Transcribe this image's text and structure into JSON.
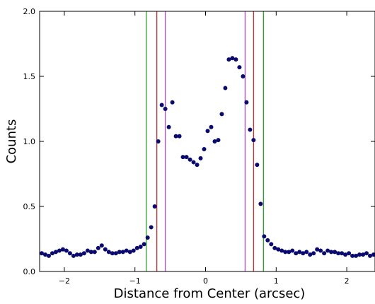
{
  "chart_data": {
    "type": "scatter",
    "title": "",
    "xlabel": "Distance from Center (arcsec)",
    "ylabel": "Counts",
    "xlim": [
      -2.35,
      2.4
    ],
    "ylim": [
      0.0,
      2.0
    ],
    "xticks": [
      -2,
      -1,
      0,
      1,
      2
    ],
    "xtick_labels": [
      "−2",
      "−1",
      "0",
      "1",
      "2"
    ],
    "yticks": [
      0.0,
      0.5,
      1.0,
      1.5,
      2.0
    ],
    "ytick_labels": [
      "0.0",
      "0.5",
      "1.0",
      "1.5",
      "2.0"
    ],
    "grid": false,
    "legend": "none",
    "marker_color": "#0a0a6e",
    "series": [
      {
        "x": [
          -2.32,
          -2.27,
          -2.22,
          -2.17,
          -2.12,
          -2.07,
          -2.02,
          -1.97,
          -1.92,
          -1.87,
          -1.82,
          -1.77,
          -1.72,
          -1.67,
          -1.62,
          -1.57,
          -1.52,
          -1.47,
          -1.42,
          -1.37,
          -1.32,
          -1.27,
          -1.22,
          -1.17,
          -1.12,
          -1.07,
          -1.02,
          -0.97,
          -0.92,
          -0.87,
          -0.82,
          -0.77,
          -0.72,
          -0.67,
          -0.62,
          -0.57,
          -0.52,
          -0.47,
          -0.42,
          -0.37,
          -0.32,
          -0.27,
          -0.22,
          -0.17,
          -0.12,
          -0.07,
          -0.02,
          0.03,
          0.08,
          0.13,
          0.18,
          0.23,
          0.28,
          0.33,
          0.38,
          0.43,
          0.48,
          0.53,
          0.58,
          0.63,
          0.68,
          0.73,
          0.78,
          0.83,
          0.88,
          0.93,
          0.98,
          1.03,
          1.08,
          1.13,
          1.18,
          1.23,
          1.28,
          1.33,
          1.38,
          1.43,
          1.48,
          1.53,
          1.58,
          1.63,
          1.68,
          1.73,
          1.78,
          1.83,
          1.88,
          1.93,
          1.98,
          2.03,
          2.08,
          2.13,
          2.18,
          2.23,
          2.28,
          2.33,
          2.38
        ],
        "y": [
          0.14,
          0.13,
          0.12,
          0.14,
          0.15,
          0.16,
          0.17,
          0.16,
          0.14,
          0.12,
          0.13,
          0.13,
          0.14,
          0.16,
          0.15,
          0.15,
          0.18,
          0.2,
          0.17,
          0.15,
          0.14,
          0.14,
          0.15,
          0.15,
          0.16,
          0.15,
          0.16,
          0.18,
          0.19,
          0.21,
          0.26,
          0.34,
          0.5,
          1.0,
          1.28,
          1.25,
          1.11,
          1.3,
          1.04,
          1.04,
          0.88,
          0.88,
          0.86,
          0.84,
          0.82,
          0.87,
          0.94,
          1.08,
          1.11,
          1.0,
          1.01,
          1.21,
          1.41,
          1.63,
          1.64,
          1.63,
          1.57,
          1.5,
          1.3,
          1.09,
          1.01,
          0.82,
          0.52,
          0.27,
          0.24,
          0.21,
          0.18,
          0.17,
          0.16,
          0.15,
          0.15,
          0.16,
          0.14,
          0.15,
          0.14,
          0.15,
          0.13,
          0.14,
          0.17,
          0.16,
          0.14,
          0.16,
          0.15,
          0.15,
          0.14,
          0.14,
          0.13,
          0.14,
          0.12,
          0.12,
          0.13,
          0.13,
          0.14,
          0.12,
          0.13
        ]
      }
    ],
    "vlines": [
      {
        "x": -0.84,
        "color": "#2ca02c"
      },
      {
        "x": -0.69,
        "color": "#d62728"
      },
      {
        "x": -0.57,
        "color": "#b04ad6"
      },
      {
        "x": 0.56,
        "color": "#b04ad6"
      },
      {
        "x": 0.68,
        "color": "#d62728"
      },
      {
        "x": 0.82,
        "color": "#2ca02c"
      }
    ]
  }
}
